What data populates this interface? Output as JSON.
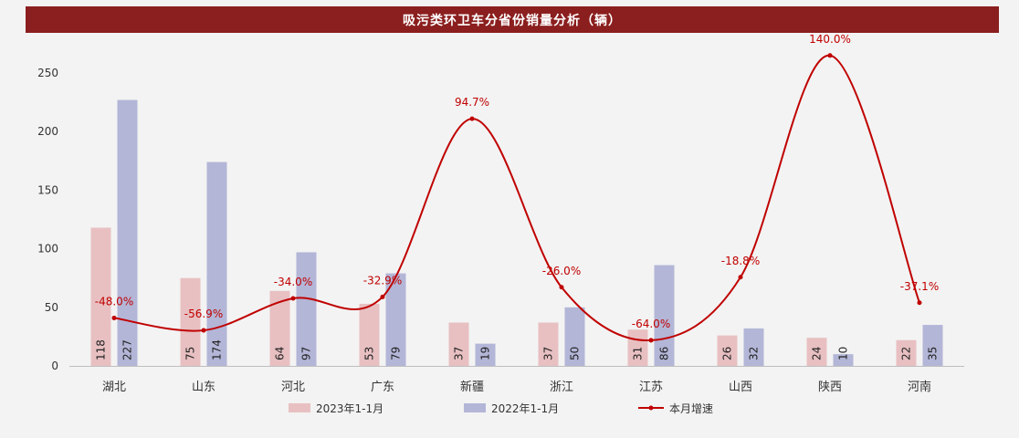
{
  "title": "吸污类环卫车分省份销量分析（辆）",
  "colors": {
    "title_bg": "#8b1e1e",
    "series_2023": "#e8c0c2",
    "series_2022": "#b3b6d7",
    "growth_line": "#c00000"
  },
  "chart_data": {
    "type": "bar",
    "categories": [
      "湖北",
      "山东",
      "河北",
      "广东",
      "新疆",
      "浙江",
      "江苏",
      "山西",
      "陕西",
      "河南"
    ],
    "series": [
      {
        "name": "2023年1-1月",
        "values": [
          118,
          75,
          64,
          53,
          37,
          37,
          31,
          26,
          24,
          22
        ]
      },
      {
        "name": "2022年1-1月",
        "values": [
          227,
          174,
          97,
          79,
          19,
          50,
          86,
          32,
          10,
          35
        ]
      }
    ],
    "line_series": {
      "name": "本月增速",
      "values": [
        -48.0,
        -56.9,
        -34.0,
        -32.9,
        94.7,
        -26.0,
        -64.0,
        -18.8,
        140.0,
        -37.1
      ],
      "labels": [
        "-48.0%",
        "-56.9%",
        "-34.0%",
        "-32.9%",
        "94.7%",
        "-26.0%",
        "-64.0%",
        "-18.8%",
        "140.0%",
        "-37.1%"
      ]
    },
    "y_ticks": [
      0,
      50,
      100,
      150,
      200,
      250
    ],
    "ylim": [
      0,
      250
    ],
    "grid": false,
    "legend_position": "bottom"
  }
}
